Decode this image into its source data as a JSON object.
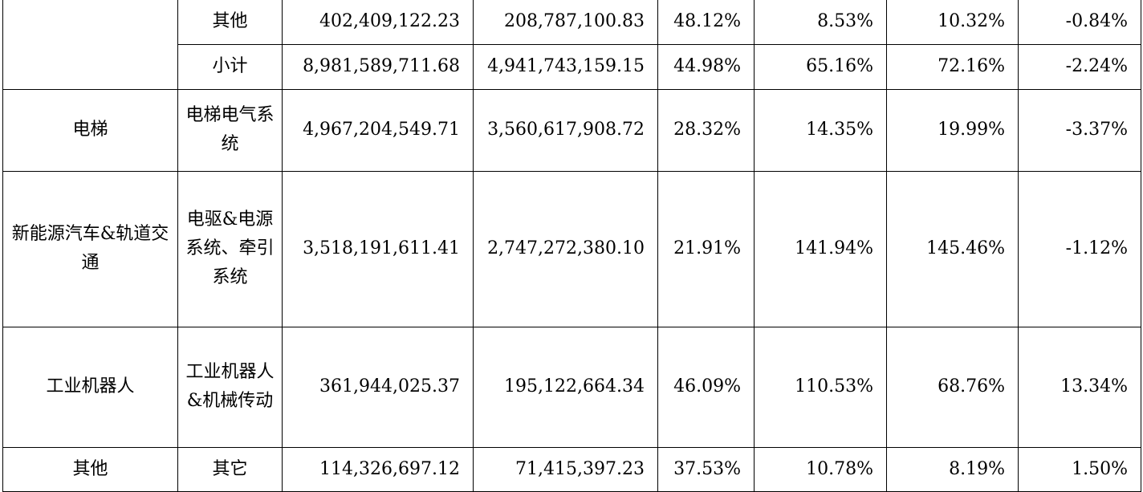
{
  "rows": [
    {
      "category": "",
      "product": "其他",
      "revenue": "402,409,122.23",
      "cost": "208,787,100.83",
      "margin": "48.12%",
      "rev_change": "8.53%",
      "cost_change": "10.32%",
      "margin_change": "-0.84%"
    },
    {
      "category": "",
      "product": "小计",
      "revenue": "8,981,589,711.68",
      "cost": "4,941,743,159.15",
      "margin": "44.98%",
      "rev_change": "65.16%",
      "cost_change": "72.16%",
      "margin_change": "-2.24%"
    },
    {
      "category": "电梯",
      "product": "电梯电气系统",
      "revenue": "4,967,204,549.71",
      "cost": "3,560,617,908.72",
      "margin": "28.32%",
      "rev_change": "14.35%",
      "cost_change": "19.99%",
      "margin_change": "-3.37%"
    },
    {
      "category": "新能源汽车&轨道交通",
      "product": "电驱&电源系统、牵引系统",
      "revenue": "3,518,191,611.41",
      "cost": "2,747,272,380.10",
      "margin": "21.91%",
      "rev_change": "141.94%",
      "cost_change": "145.46%",
      "margin_change": "-1.12%"
    },
    {
      "category": "工业机器人",
      "product": "工业机器人&机械传动",
      "revenue": "361,944,025.37",
      "cost": "195,122,664.34",
      "margin": "46.09%",
      "rev_change": "110.53%",
      "cost_change": "68.76%",
      "margin_change": "13.34%"
    },
    {
      "category": "其他",
      "product": "其它",
      "revenue": "114,326,697.12",
      "cost": "71,415,397.23",
      "margin": "37.53%",
      "rev_change": "10.78%",
      "cost_change": "8.19%",
      "margin_change": "1.50%"
    }
  ]
}
